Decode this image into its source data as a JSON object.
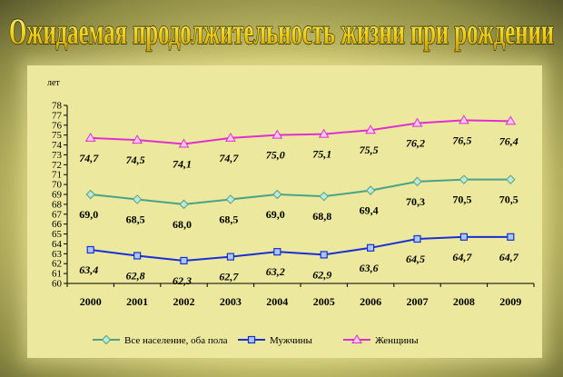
{
  "title": "Ожидаемая продолжительность жизни при рождении",
  "chart_data": {
    "type": "line",
    "unit_label": "лет",
    "categories": [
      "2000",
      "2001",
      "2002",
      "2003",
      "2004",
      "2005",
      "2006",
      "2007",
      "2008",
      "2009"
    ],
    "ylim": [
      60,
      78
    ],
    "yticks": [
      60,
      61,
      62,
      63,
      64,
      65,
      66,
      67,
      68,
      69,
      70,
      71,
      72,
      73,
      74,
      75,
      76,
      77,
      78
    ],
    "grid": false,
    "legend_placement": "bottom",
    "series": [
      {
        "name": "Все население, оба пола",
        "color": "#4aa386",
        "marker": "diamond",
        "values": [
          69.0,
          68.5,
          68.0,
          68.5,
          69.0,
          68.8,
          69.4,
          70.3,
          70.5,
          70.5
        ],
        "labels": [
          "69,0",
          "68,5",
          "68,0",
          "68,5",
          "69,0",
          "68,8",
          "69,4",
          "70,3",
          "70,5",
          "70,5"
        ]
      },
      {
        "name": "Мужчины",
        "color": "#1a2ed6",
        "marker": "square",
        "values": [
          63.4,
          62.8,
          62.3,
          62.7,
          63.2,
          62.9,
          63.6,
          64.5,
          64.7,
          64.7
        ],
        "labels": [
          "63,4",
          "62,8",
          "62,3",
          "62,7",
          "63,2",
          "62,9",
          "63,6",
          "64,5",
          "64,7",
          "64,7"
        ]
      },
      {
        "name": "Женщины",
        "color": "#e02fd0",
        "marker": "triangle",
        "values": [
          74.7,
          74.5,
          74.1,
          74.7,
          75.0,
          75.1,
          75.5,
          76.2,
          76.5,
          76.4
        ],
        "labels": [
          "74,7",
          "74,5",
          "74,1",
          "74,7",
          "75,0",
          "75,1",
          "75,5",
          "76,2",
          "76,5",
          "76,4"
        ]
      }
    ]
  }
}
